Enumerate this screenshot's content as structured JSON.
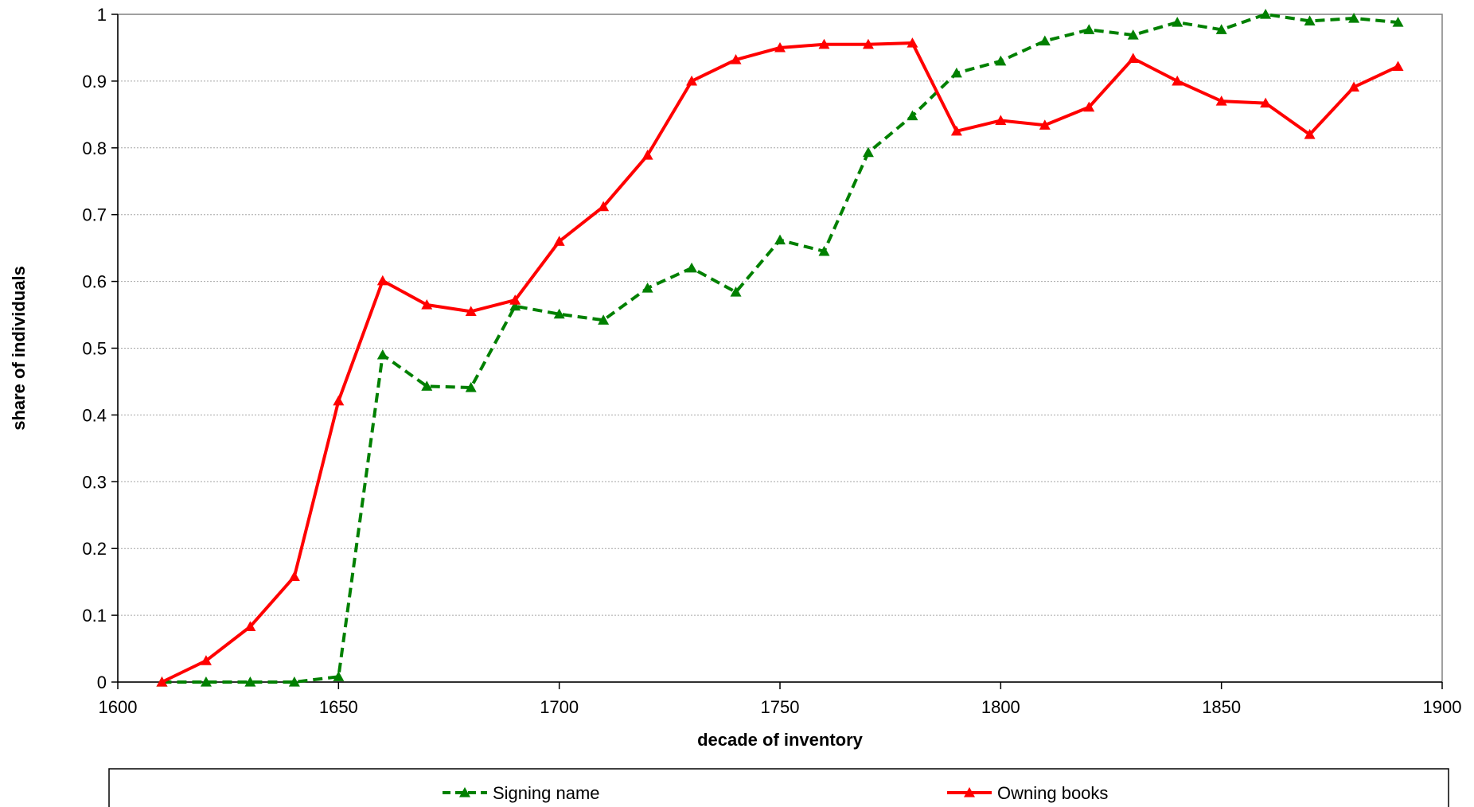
{
  "chart_data": {
    "type": "line",
    "xlabel": "decade of inventory",
    "ylabel": "share of individuals",
    "xlim": [
      1600,
      1900
    ],
    "ylim": [
      0,
      1
    ],
    "x_ticks": [
      1600,
      1650,
      1700,
      1750,
      1800,
      1850,
      1900
    ],
    "y_ticks": [
      0,
      0.1,
      0.2,
      0.3,
      0.4,
      0.5,
      0.6,
      0.7,
      0.8,
      0.9,
      1
    ],
    "y_tick_labels": [
      "0",
      "0.1",
      "0.2",
      "0.3",
      "0.4",
      "0.5",
      "0.6",
      "0.7",
      "0.8",
      "0.9",
      "1"
    ],
    "x_tick_labels": [
      "1600",
      "1650",
      "1700",
      "1750",
      "1800",
      "1850",
      "1900"
    ],
    "grid": true,
    "legend_position": "bottom",
    "x": [
      1610,
      1620,
      1630,
      1640,
      1650,
      1660,
      1670,
      1680,
      1690,
      1700,
      1710,
      1720,
      1730,
      1740,
      1750,
      1760,
      1770,
      1780,
      1790,
      1800,
      1810,
      1820,
      1830,
      1840,
      1850,
      1860,
      1870,
      1880,
      1890
    ],
    "series": [
      {
        "name": "Signing name",
        "color": "#008000",
        "line_style": "dashed",
        "marker": "triangle",
        "values": [
          0,
          0,
          0,
          0,
          0.008,
          0.49,
          0.443,
          0.441,
          0.563,
          0.551,
          0.542,
          0.59,
          0.62,
          0.584,
          0.662,
          0.645,
          0.793,
          0.848,
          0.912,
          0.93,
          0.96,
          0.977,
          0.969,
          0.988,
          0.977,
          1.0,
          0.99,
          0.994,
          0.988
        ]
      },
      {
        "name": "Owning books",
        "color": "#ff0000",
        "line_style": "solid",
        "marker": "triangle",
        "values": [
          0,
          0.032,
          0.083,
          0.158,
          0.421,
          0.601,
          0.565,
          0.555,
          0.572,
          0.66,
          0.712,
          0.789,
          0.9,
          0.932,
          0.95,
          0.955,
          0.955,
          0.957,
          0.825,
          0.841,
          0.834,
          0.861,
          0.934,
          0.9,
          0.87,
          0.867,
          0.82,
          0.891,
          0.922
        ]
      }
    ]
  }
}
